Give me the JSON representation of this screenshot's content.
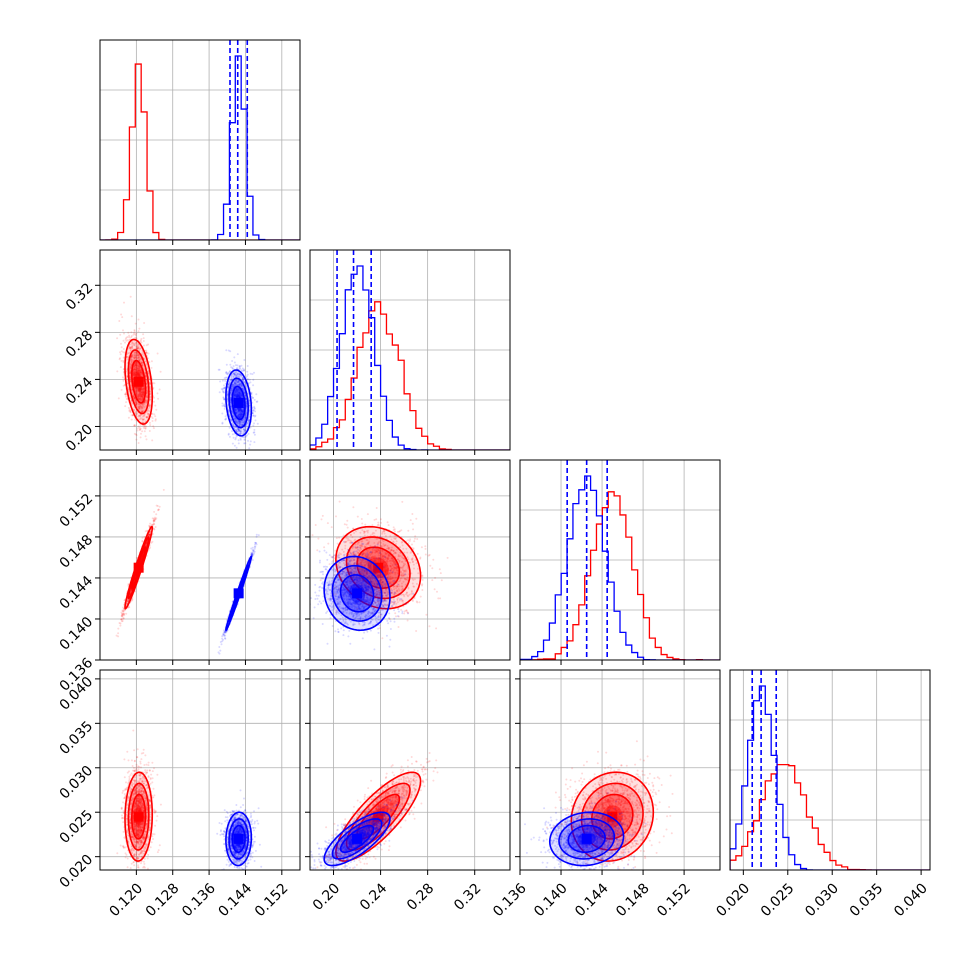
{
  "chart_data": {
    "type": "corner",
    "parameters": 4,
    "colors": {
      "series_a": "#ff0000",
      "series_b": "#0000ff"
    },
    "grid": true,
    "quantile_lines": {
      "series": "series_b",
      "style": "dashed"
    },
    "axes": [
      {
        "range": [
          0.112,
          0.156
        ],
        "ticks": [
          0.12,
          0.128,
          0.136,
          0.144,
          0.152
        ],
        "tick_labels": [
          "0.120",
          "0.128",
          "0.136",
          "0.144",
          "0.152"
        ]
      },
      {
        "range": [
          0.18,
          0.35
        ],
        "ticks": [
          0.2,
          0.24,
          0.28,
          0.32
        ],
        "tick_labels": [
          "0.20",
          "0.24",
          "0.28",
          "0.32"
        ]
      },
      {
        "range": [
          0.136,
          0.1555
        ],
        "ticks": [
          0.136,
          0.14,
          0.144,
          0.148,
          0.152
        ],
        "tick_labels": [
          "0.136",
          "0.140",
          "0.144",
          "0.148",
          "0.152"
        ]
      },
      {
        "range": [
          0.0185,
          0.041
        ],
        "ticks": [
          0.02,
          0.025,
          0.03,
          0.035,
          0.04
        ],
        "tick_labels": [
          "0.020",
          "0.025",
          "0.030",
          "0.035",
          "0.040"
        ]
      }
    ],
    "series": [
      {
        "id": "series_a",
        "mean": [
          0.1205,
          0.238,
          0.145,
          0.0245
        ],
        "std": [
          0.0015,
          0.018,
          0.002,
          0.0025
        ],
        "corr": {
          "0-1": -0.35,
          "0-2": 0.97,
          "0-3": 0.05,
          "1-2": -0.2,
          "1-3": 0.8,
          "2-3": 0.1
        }
      },
      {
        "id": "series_b",
        "mean": [
          0.1425,
          0.22,
          0.1425,
          0.022
        ],
        "std": [
          0.0014,
          0.014,
          0.0018,
          0.0015
        ],
        "corr": {
          "0-1": -0.2,
          "0-2": 0.99,
          "0-3": 0.05,
          "1-2": -0.1,
          "1-3": 0.75,
          "2-3": 0.1
        },
        "quantiles": [
          [
            0.1406,
            0.1423,
            0.1444
          ],
          [
            0.203,
            0.217,
            0.232
          ],
          [
            0.1406,
            0.1425,
            0.1445
          ],
          [
            0.021,
            0.022,
            0.0237
          ]
        ]
      }
    ]
  }
}
